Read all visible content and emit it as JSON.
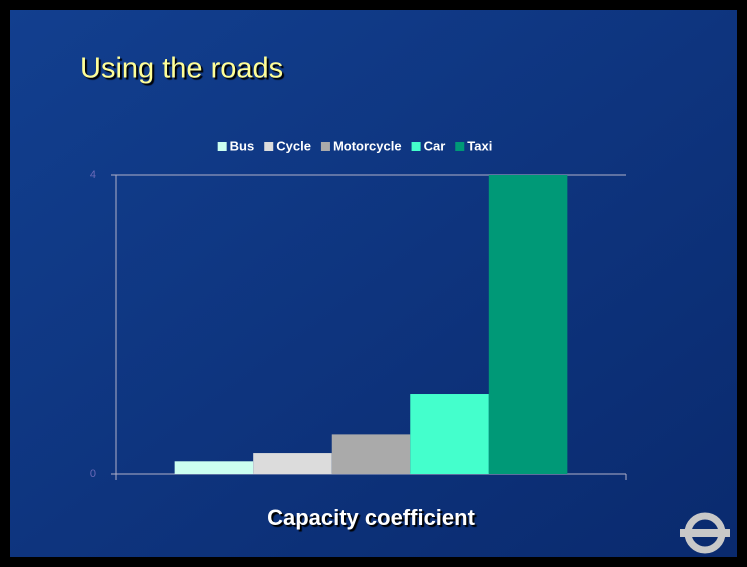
{
  "chart_data": {
    "type": "bar",
    "title": "Using the roads",
    "categories": [
      "Capacity coefficient"
    ],
    "series": [
      {
        "name": "Bus",
        "color": "#ccfff0",
        "values": [
          0.17
        ]
      },
      {
        "name": "Cycle",
        "color": "#dcdcdc",
        "values": [
          0.28
        ]
      },
      {
        "name": "Motorcycle",
        "color": "#aaaaaa",
        "values": [
          0.53
        ]
      },
      {
        "name": "Car",
        "color": "#44ffcc",
        "values": [
          1.07
        ]
      },
      {
        "name": "Taxi",
        "color": "#009977",
        "values": [
          4
        ]
      }
    ],
    "ylim": [
      0,
      4
    ],
    "yticks": [
      0,
      4
    ],
    "grid": false,
    "legend": "top"
  }
}
